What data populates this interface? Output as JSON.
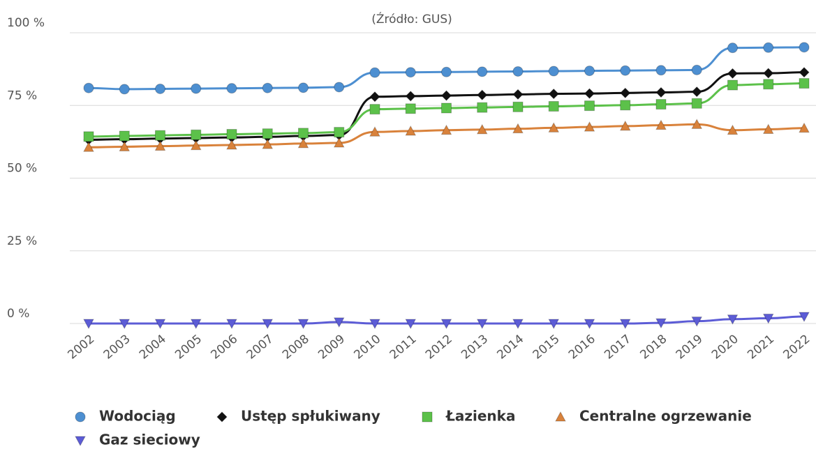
{
  "chart_data": {
    "type": "line",
    "title": "(Źródło: GUS)",
    "categories": [
      "2002",
      "2003",
      "2004",
      "2005",
      "2006",
      "2007",
      "2008",
      "2009",
      "2010",
      "2011",
      "2012",
      "2013",
      "2014",
      "2015",
      "2016",
      "2017",
      "2018",
      "2019",
      "2020",
      "2021",
      "2022"
    ],
    "ylim": [
      0,
      100
    ],
    "yticks": [
      {
        "value": 0,
        "label": "0 %"
      },
      {
        "value": 25,
        "label": "25 %"
      },
      {
        "value": 50,
        "label": "50 %"
      },
      {
        "value": 75,
        "label": "75 %"
      },
      {
        "value": 100,
        "label": "100 %"
      }
    ],
    "grid": true,
    "legend": "bottom",
    "series": [
      {
        "name": "Wodociąg",
        "color": "#4d8fd1",
        "symbol": "circle",
        "values": [
          81.0,
          80.6,
          80.7,
          80.8,
          80.9,
          81.0,
          81.1,
          81.3,
          86.3,
          86.4,
          86.5,
          86.6,
          86.7,
          86.8,
          86.9,
          87.0,
          87.1,
          87.2,
          94.8,
          94.9,
          95.0
        ]
      },
      {
        "name": "Ustęp spłukiwany",
        "color": "#111111",
        "symbol": "diamond",
        "values": [
          63.2,
          63.4,
          63.6,
          63.8,
          64.0,
          64.2,
          64.5,
          64.8,
          78.0,
          78.2,
          78.4,
          78.6,
          78.8,
          79.0,
          79.1,
          79.3,
          79.5,
          79.7,
          86.0,
          86.1,
          86.4
        ]
      },
      {
        "name": "Łazienka",
        "color": "#5cc14a",
        "symbol": "square",
        "values": [
          64.3,
          64.5,
          64.7,
          64.9,
          65.1,
          65.3,
          65.5,
          65.8,
          73.7,
          73.9,
          74.1,
          74.3,
          74.5,
          74.7,
          74.9,
          75.1,
          75.4,
          75.7,
          82.0,
          82.3,
          82.6
        ]
      },
      {
        "name": "Centralne ogrzewanie",
        "color": "#d9823b",
        "symbol": "triangle",
        "values": [
          60.6,
          60.8,
          61.0,
          61.2,
          61.4,
          61.6,
          61.9,
          62.1,
          65.9,
          66.2,
          66.5,
          66.7,
          67.0,
          67.3,
          67.6,
          67.9,
          68.2,
          68.5,
          66.5,
          66.8,
          67.2
        ]
      },
      {
        "name": "Gaz sieciowy",
        "color": "#5c5cd6",
        "symbol": "triangle-down",
        "values": [
          0,
          0,
          0,
          0,
          0,
          0,
          0,
          0.5,
          0,
          0,
          0,
          0,
          0,
          0,
          0,
          0,
          0.2,
          0.8,
          1.5,
          1.8,
          2.4
        ]
      }
    ]
  }
}
